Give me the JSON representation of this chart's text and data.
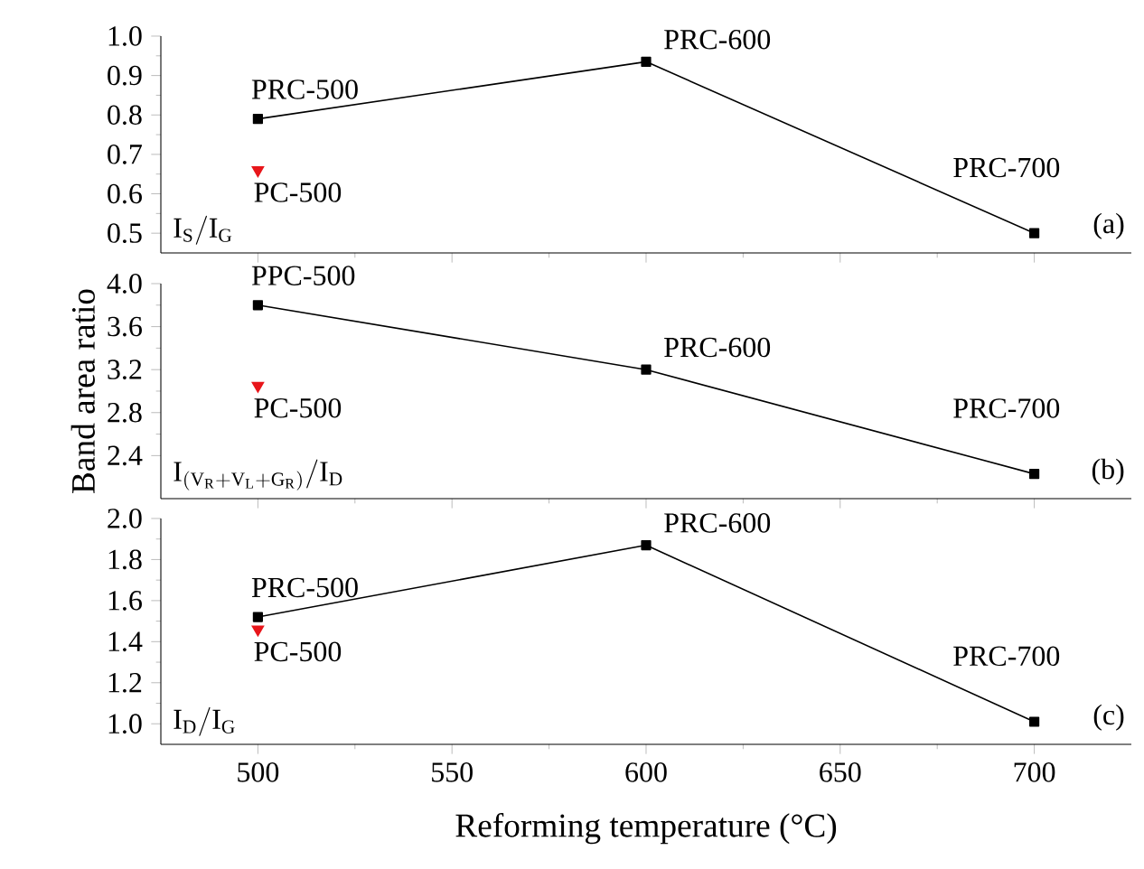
{
  "chart_data": [
    {
      "type": "line",
      "xlim": [
        475,
        725
      ],
      "xticks": [
        {
          "value": 500,
          "label": null
        },
        {
          "value": 550,
          "label": null
        },
        {
          "value": 600,
          "label": null
        },
        {
          "value": 650,
          "label": null
        },
        {
          "value": 700,
          "label": null
        }
      ],
      "ylim": [
        0.45,
        1.0
      ],
      "yticks": [
        0.5,
        0.6,
        0.7,
        0.8,
        0.9,
        {
          "value": 1.0,
          "label": "1.0"
        }
      ],
      "tick_labels": "y",
      "series": [
        {
          "marker": "square",
          "color": "#000000",
          "x": [
            500,
            600,
            700
          ],
          "values": [
            0.79,
            0.935,
            0.5
          ]
        },
        {
          "type": "scatter",
          "marker": "triangle",
          "color": "#e8161b",
          "x": [
            500
          ],
          "values": [
            0.66
          ]
        }
      ],
      "annotations": [
        {
          "text": "PRC-500",
          "x": 500,
          "y": 0.79
        },
        {
          "text": "PRC-600",
          "x": 600,
          "y": 0.935
        },
        {
          "text": "PRC-700",
          "x": 700,
          "y": 0.5
        },
        {
          "text": "PC-500",
          "x": 500,
          "y": 0.66
        },
        "\\mathrm{I}_\\mathrm{S}/\\mathrm{I}_\\mathrm{G}",
        "(a)"
      ]
    },
    {
      "type": "line",
      "xlim": [
        475,
        725
      ],
      "xticks": [
        {
          "value": 500,
          "label": null
        },
        {
          "value": 550,
          "label": null
        },
        {
          "value": 600,
          "label": null
        },
        {
          "value": 650,
          "label": null
        },
        {
          "value": 700,
          "label": null
        }
      ],
      "ylim": [
        2.0,
        4.0
      ],
      "yticks": [
        2.4,
        2.8,
        3.2,
        3.6,
        {
          "value": 4.0,
          "label": "4.0"
        }
      ],
      "tick_labels": "y",
      "ylabel": "Band area ratio",
      "series": [
        {
          "marker": "square",
          "color": "#000000",
          "x": [
            500,
            600,
            700
          ],
          "values": [
            3.8,
            3.2,
            2.23
          ]
        },
        {
          "type": "scatter",
          "marker": "triangle",
          "color": "#e8161b",
          "x": [
            500
          ],
          "values": [
            3.05
          ]
        }
      ],
      "annotations": [
        {
          "text": "PPC-500",
          "x": 500,
          "y": 3.8
        },
        {
          "text": "PRC-600",
          "x": 600,
          "y": 3.2
        },
        {
          "text": "PRC-700",
          "x": 700,
          "y": 2.23
        },
        {
          "text": "PC-500",
          "x": 500,
          "y": 3.05
        },
        "\\mathrm{I}_{(\\mathrm{V}_\\mathrm{R}+\\mathrm{V}_\\mathrm{L}+\\mathrm{G}_\\mathrm{R})}/\\mathrm{I}_\\mathrm{D}",
        "(b)"
      ]
    },
    {
      "type": "line",
      "xlim": [
        475,
        725
      ],
      "xticks": [
        500,
        550,
        600,
        650,
        700
      ],
      "ylim": [
        0.9,
        2.0
      ],
      "yticks": [
        {
          "value": 1.0,
          "label": "1.0"
        },
        1.2,
        1.4,
        1.6,
        1.8,
        {
          "value": 2.0,
          "label": "2.0"
        }
      ],
      "xlabel": "Reforming temperature (°C)",
      "series": [
        {
          "marker": "square",
          "color": "#000000",
          "x": [
            500,
            600,
            700
          ],
          "values": [
            1.52,
            1.87,
            1.01
          ]
        },
        {
          "type": "scatter",
          "marker": "triangle",
          "color": "#e8161b",
          "x": [
            500
          ],
          "values": [
            1.46
          ]
        }
      ],
      "annotations": [
        {
          "text": "PRC-500",
          "x": 500,
          "y": 1.52
        },
        {
          "text": "PRC-600",
          "x": 600,
          "y": 1.87
        },
        {
          "text": "PRC-700",
          "x": 700,
          "y": 1.01
        },
        {
          "text": "PC-500",
          "x": 500,
          "y": 1.46
        },
        "\\mathrm{I}_\\mathrm{D}/\\mathrm{I}_\\mathrm{G}",
        "(c)"
      ]
    }
  ]
}
